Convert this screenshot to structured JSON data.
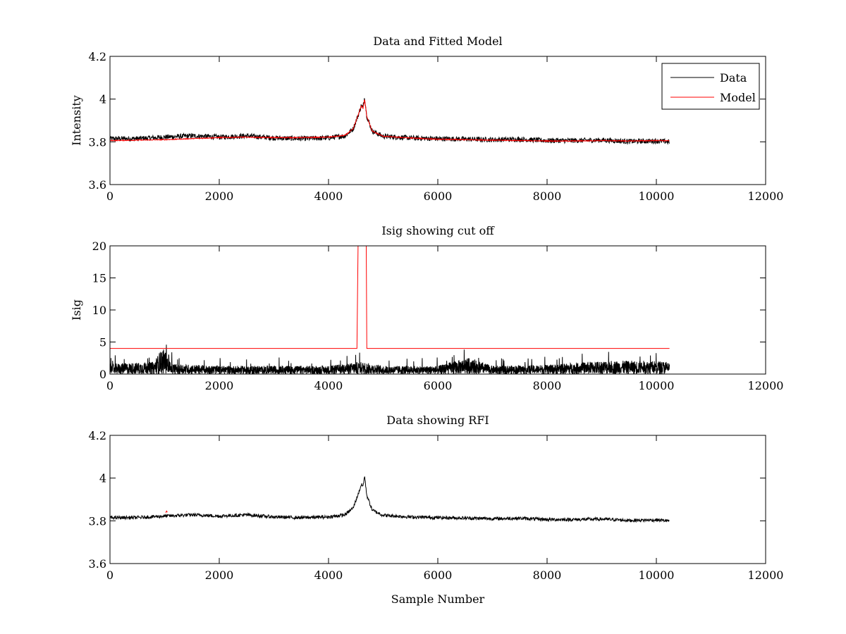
{
  "figure": {
    "background": "#ffffff",
    "data_color": "#000000",
    "model_color": "#ff0000"
  },
  "chart_data": [
    {
      "type": "line",
      "title": "Data and Fitted Model",
      "xlabel": "",
      "ylabel": "Intensity",
      "xlim": [
        0,
        12000
      ],
      "ylim": [
        3.6,
        4.2
      ],
      "x_ticks": [
        "0",
        "2000",
        "4000",
        "6000",
        "8000",
        "10000",
        "12000"
      ],
      "y_ticks": [
        "3.6",
        "3.8",
        "4",
        "4.2"
      ],
      "legend": {
        "placement": "top-right",
        "entries": [
          "Data",
          "Model"
        ]
      },
      "series": [
        {
          "name": "Data",
          "color": "#000000",
          "noise_amplitude": 0.012,
          "points": [
            [
              0,
              3.815
            ],
            [
              500,
              3.815
            ],
            [
              1000,
              3.822
            ],
            [
              1500,
              3.828
            ],
            [
              1800,
              3.825
            ],
            [
              2000,
              3.822
            ],
            [
              2500,
              3.828
            ],
            [
              3000,
              3.818
            ],
            [
              3500,
              3.815
            ],
            [
              4000,
              3.818
            ],
            [
              4300,
              3.828
            ],
            [
              4450,
              3.86
            ],
            [
              4550,
              3.93
            ],
            [
              4600,
              3.97
            ],
            [
              4630,
              3.96
            ],
            [
              4660,
              4.01
            ],
            [
              4700,
              3.92
            ],
            [
              4800,
              3.85
            ],
            [
              5000,
              3.826
            ],
            [
              5500,
              3.818
            ],
            [
              6000,
              3.815
            ],
            [
              6500,
              3.813
            ],
            [
              7000,
              3.81
            ],
            [
              7500,
              3.812
            ],
            [
              8000,
              3.806
            ],
            [
              8500,
              3.806
            ],
            [
              9000,
              3.808
            ],
            [
              9500,
              3.802
            ],
            [
              10000,
              3.804
            ],
            [
              10240,
              3.8
            ]
          ]
        },
        {
          "name": "Model",
          "color": "#ff0000",
          "noise_amplitude": 0.002,
          "points": [
            [
              0,
              3.806
            ],
            [
              500,
              3.808
            ],
            [
              1000,
              3.81
            ],
            [
              1500,
              3.815
            ],
            [
              2000,
              3.82
            ],
            [
              2500,
              3.822
            ],
            [
              3000,
              3.82
            ],
            [
              3500,
              3.82
            ],
            [
              4000,
              3.822
            ],
            [
              4300,
              3.83
            ],
            [
              4450,
              3.86
            ],
            [
              4550,
              3.93
            ],
            [
              4600,
              3.97
            ],
            [
              4630,
              3.955
            ],
            [
              4660,
              4.0
            ],
            [
              4700,
              3.92
            ],
            [
              4800,
              3.85
            ],
            [
              5000,
              3.826
            ],
            [
              5500,
              3.818
            ],
            [
              6000,
              3.812
            ],
            [
              6500,
              3.81
            ],
            [
              7000,
              3.808
            ],
            [
              7500,
              3.806
            ],
            [
              8000,
              3.804
            ],
            [
              8500,
              3.804
            ],
            [
              9000,
              3.806
            ],
            [
              9500,
              3.804
            ],
            [
              10000,
              3.806
            ],
            [
              10240,
              3.805
            ]
          ]
        }
      ]
    },
    {
      "type": "line",
      "title": "Isig showing cut off",
      "xlabel": "",
      "ylabel": "Isig",
      "xlim": [
        0,
        12000
      ],
      "ylim": [
        0,
        20
      ],
      "x_ticks": [
        "0",
        "2000",
        "4000",
        "6000",
        "8000",
        "10000",
        "12000"
      ],
      "y_ticks": [
        "0",
        "5",
        "10",
        "15",
        "20"
      ],
      "series": [
        {
          "color": "#000000",
          "kind": "noise",
          "x_range": [
            0,
            10240
          ],
          "typical_max": 2.0,
          "points": [
            [
              0,
              1.0
            ],
            [
              800,
              1.2
            ],
            [
              950,
              2.5
            ],
            [
              1050,
              2.2
            ],
            [
              1150,
              1.0
            ],
            [
              2000,
              0.8
            ],
            [
              4000,
              0.8
            ],
            [
              4600,
              1.2
            ],
            [
              5000,
              0.8
            ],
            [
              6000,
              0.8
            ],
            [
              6550,
              1.6
            ],
            [
              7000,
              0.8
            ],
            [
              8000,
              0.9
            ],
            [
              9000,
              1.3
            ],
            [
              10000,
              1.3
            ],
            [
              10240,
              1.2
            ]
          ]
        },
        {
          "color": "#ff0000",
          "kind": "cutoff",
          "points": [
            [
              0,
              4
            ],
            [
              4520,
              4
            ],
            [
              4530,
              12
            ],
            [
              4540,
              20
            ],
            [
              4690,
              20
            ],
            [
              4700,
              4
            ],
            [
              10240,
              4
            ]
          ]
        }
      ]
    },
    {
      "type": "line",
      "title": "Data showing RFI",
      "xlabel": "Sample Number",
      "ylabel": "",
      "xlim": [
        0,
        12000
      ],
      "ylim": [
        3.6,
        4.2
      ],
      "x_ticks": [
        "0",
        "2000",
        "4000",
        "6000",
        "8000",
        "10000",
        "12000"
      ],
      "y_ticks": [
        "3.6",
        "3.8",
        "4",
        "4.2"
      ],
      "series": [
        {
          "color": "#000000",
          "noise_amplitude": 0.008,
          "points": [
            [
              0,
              3.815
            ],
            [
              500,
              3.815
            ],
            [
              1000,
              3.822
            ],
            [
              1500,
              3.828
            ],
            [
              1800,
              3.825
            ],
            [
              2000,
              3.822
            ],
            [
              2500,
              3.828
            ],
            [
              3000,
              3.818
            ],
            [
              3500,
              3.815
            ],
            [
              4000,
              3.818
            ],
            [
              4300,
              3.828
            ],
            [
              4450,
              3.86
            ],
            [
              4550,
              3.93
            ],
            [
              4600,
              3.97
            ],
            [
              4630,
              3.96
            ],
            [
              4660,
              4.01
            ],
            [
              4700,
              3.92
            ],
            [
              4800,
              3.85
            ],
            [
              5000,
              3.826
            ],
            [
              5500,
              3.818
            ],
            [
              6000,
              3.815
            ],
            [
              6500,
              3.813
            ],
            [
              7000,
              3.81
            ],
            [
              7500,
              3.812
            ],
            [
              8000,
              3.806
            ],
            [
              8500,
              3.806
            ],
            [
              9000,
              3.808
            ],
            [
              9500,
              3.802
            ],
            [
              10000,
              3.804
            ],
            [
              10240,
              3.8
            ]
          ]
        },
        {
          "color": "#ff0000",
          "kind": "rfi-flagged",
          "points": [
            [
              1020,
              3.838
            ],
            [
              1035,
              3.846
            ],
            [
              1050,
              3.84
            ]
          ]
        }
      ]
    }
  ]
}
